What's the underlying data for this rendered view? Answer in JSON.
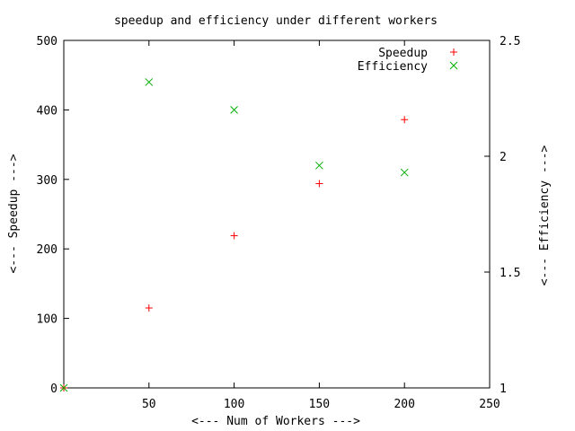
{
  "chart_data": {
    "type": "scatter",
    "title": "speedup and efficiency under different workers",
    "xlabel": "<--- Num of Workers --->",
    "ylabel": "<--- Speedup --->",
    "y2label": "<--- Efficiency --->",
    "xlim": [
      0,
      250
    ],
    "ylim": [
      0,
      500
    ],
    "y2lim": [
      1,
      2.5
    ],
    "xticks": [
      "50",
      "100",
      "150",
      "200",
      "250"
    ],
    "yticks": [
      "0",
      "100",
      "200",
      "300",
      "400",
      "500"
    ],
    "y2ticks": [
      "1",
      "1.5",
      "2",
      "2.5"
    ],
    "grid": false,
    "legend_position": "top-right",
    "series": [
      {
        "name": "Speedup",
        "axis": "left",
        "marker": "+",
        "color": "#ff0000",
        "x": [
          0,
          50,
          100,
          150,
          200
        ],
        "y": [
          0,
          115,
          219,
          294,
          386
        ]
      },
      {
        "name": "Efficiency",
        "axis": "right",
        "marker": "x",
        "color": "#00b000",
        "x": [
          0,
          50,
          100,
          150,
          200
        ],
        "y": [
          1.0,
          2.32,
          2.2,
          1.96,
          1.93
        ]
      }
    ]
  }
}
